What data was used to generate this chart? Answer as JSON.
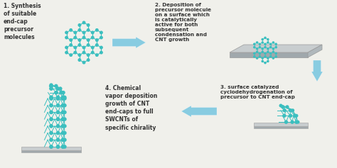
{
  "bg_color": "#f0f0eb",
  "arrow_color": "#7dc8e0",
  "text_color": "#333333",
  "step1_text": "1. Synthesis\nof suitable\nend-cap\nprecursor\nmolecules",
  "step2_text": "2. Deposition of\nprecursor molecule\non a surface which\nis catalytically\nactive for both\nsubsequent\ncondensation and\nCNT growth",
  "step3_text": "3. surface catalyzed\ncyclodehydrogenation of\nprecursor to CNT end-cap",
  "step4_text": "4. Chemical\nvapor deposition\ngrowth of CNT\nend-caps to full\nSWCNTs of\nspecific chirality",
  "molecule_color": "#3bbfbf",
  "surface_top": "#c8cdcf",
  "surface_front": "#a0a8ac",
  "surface_right": "#b0b8bc",
  "font_size": 5.5
}
